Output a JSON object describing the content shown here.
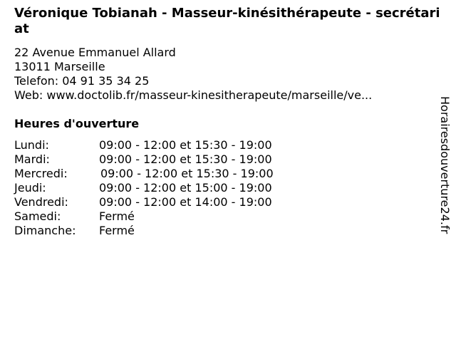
{
  "title": "Véronique Tobianah - Masseur-kinésithérapeute - secrétariat",
  "address": {
    "street": "22 Avenue Emmanuel Allard",
    "city": "13011 Marseille",
    "phone": "Telefon: 04 91 35 34 25",
    "web": "Web: www.doctolib.fr/masseur-kinesitherapeute/marseille/ve..."
  },
  "hours_heading": "Heures d'ouverture",
  "hours": [
    {
      "day": "Lundi:",
      "time": "09:00 - 12:00 et 15:30 - 19:00"
    },
    {
      "day": "Mardi:",
      "time": "09:00 - 12:00 et 15:30 - 19:00"
    },
    {
      "day": "Mercredi:",
      "time": "09:00 - 12:00 et 15:30 - 19:00"
    },
    {
      "day": "Jeudi:",
      "time": "09:00 - 12:00 et 15:00 - 19:00"
    },
    {
      "day": "Vendredi:",
      "time": "09:00 - 12:00 et 14:00 - 19:00"
    },
    {
      "day": "Samedi:",
      "time": "Fermé"
    },
    {
      "day": "Dimanche:",
      "time": "Fermé"
    }
  ],
  "watermark": "Horairesdouverture24.fr"
}
